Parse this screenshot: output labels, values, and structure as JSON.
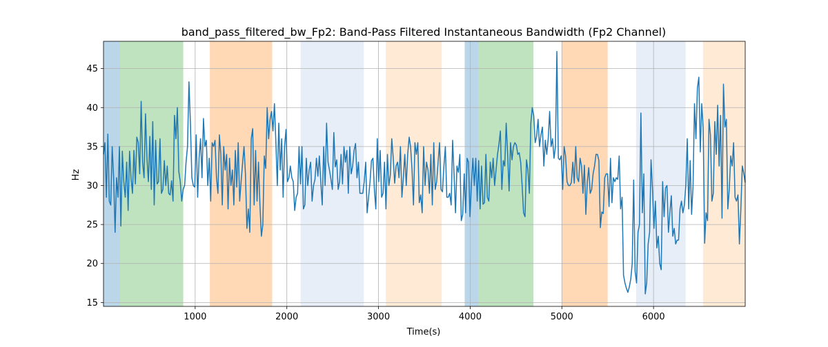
{
  "chart_data": {
    "type": "line",
    "title": "band_pass_filtered_bw_Fp2: Band-Pass Filtered Instantaneous Bandwidth (Fp2 Channel)",
    "xlabel": "Time(s)",
    "ylabel": "Hz",
    "xlim": [
      0,
      7000
    ],
    "ylim": [
      14.5,
      48.5
    ],
    "x_ticks": [
      1000,
      2000,
      3000,
      4000,
      5000,
      6000
    ],
    "y_ticks": [
      15,
      20,
      25,
      30,
      35,
      40,
      45
    ],
    "grid": true,
    "line_color": "#1f77b4",
    "bands": [
      {
        "start": 0,
        "end": 180,
        "color": "#1f77b4",
        "opacity": 0.3
      },
      {
        "start": 180,
        "end": 870,
        "color": "#2ca02c",
        "opacity": 0.3
      },
      {
        "start": 1160,
        "end": 1840,
        "color": "#ff7f0e",
        "opacity": 0.3
      },
      {
        "start": 2150,
        "end": 2840,
        "color": "#aec7e8",
        "opacity": 0.3
      },
      {
        "start": 3080,
        "end": 3690,
        "color": "#ffbb78",
        "opacity": 0.3
      },
      {
        "start": 3940,
        "end": 4090,
        "color": "#1f77b4",
        "opacity": 0.3
      },
      {
        "start": 4090,
        "end": 4690,
        "color": "#2ca02c",
        "opacity": 0.3
      },
      {
        "start": 5000,
        "end": 5500,
        "color": "#ff7f0e",
        "opacity": 0.3
      },
      {
        "start": 5810,
        "end": 6350,
        "color": "#aec7e8",
        "opacity": 0.3
      },
      {
        "start": 6540,
        "end": 7000,
        "color": "#ffbb78",
        "opacity": 0.3
      }
    ],
    "series": [
      {
        "values": [
          34,
          35.5,
          28.5,
          36.6,
          28,
          27.5,
          35,
          31,
          24,
          31,
          28.5,
          35,
          24.8,
          34.4,
          30.5,
          28.5,
          33,
          26.8,
          34.4,
          31,
          29,
          34.5,
          30.2,
          36.2,
          35.5,
          31.5,
          40.8,
          33,
          31,
          39.2,
          33.5,
          30.5,
          36.3,
          29.5,
          38.2,
          27.5,
          35.8,
          30.2,
          30.5,
          36,
          29,
          29.5,
          33.2,
          30,
          32.5,
          29,
          28.8,
          30.6,
          28,
          39,
          36,
          40,
          31.8,
          30.5,
          28,
          29.5,
          30,
          33,
          35,
          43.3,
          38,
          31,
          30,
          29.8,
          36.5,
          28.5,
          33.6,
          36,
          31,
          38.6,
          35,
          35.8,
          30,
          33.5,
          28,
          35.5,
          35,
          35.8,
          31,
          29,
          36.5,
          34,
          27.5,
          35,
          32,
          34,
          27,
          33.5,
          30,
          32,
          27.5,
          34.5,
          29.8,
          35.5,
          28,
          30.5,
          32.8,
          35,
          31.5,
          24.5,
          27,
          24,
          36,
          37.3,
          27.5,
          34.5,
          28,
          33,
          27.5,
          23.5,
          25,
          33.8,
          32.2,
          40,
          36,
          38.5,
          39.5,
          37,
          40.5,
          35.5,
          30,
          38,
          32,
          36,
          28.5,
          35,
          37.2,
          30.5,
          31,
          32.5,
          31,
          30.5,
          26.8,
          28.5,
          29,
          35,
          30.2,
          35,
          27,
          27.5,
          33.5,
          30,
          32,
          33,
          28,
          30,
          30.8,
          33.5,
          31.2,
          33.8,
          30.5,
          27.5,
          35,
          30,
          38,
          33,
          32,
          30.8,
          29.5,
          36.8,
          32.4,
          33.3,
          29.5,
          30.5,
          34,
          30.2,
          35,
          33,
          34.5,
          29,
          35,
          31.5,
          32.5,
          34.5,
          35.4,
          31,
          33,
          29,
          29,
          29,
          30.5,
          33,
          26.5,
          28.5,
          30.5,
          33.2,
          33.5,
          29.5,
          27,
          36,
          30.5,
          34.5,
          28.5,
          29,
          33,
          27,
          34,
          30,
          31.3,
          36,
          33.6,
          30.3,
          32.5,
          33,
          31,
          35,
          28.5,
          31,
          34,
          30,
          34,
          36.2,
          35,
          32,
          27.5,
          35.5,
          34,
          35.5,
          27.8,
          28.8,
          26.5,
          35,
          30,
          33,
          32,
          29,
          34,
          27.5,
          35.5,
          29.5,
          30.5,
          33,
          35.5,
          29.5,
          29.2,
          32.5,
          35,
          28.5,
          28.5,
          29,
          27.5,
          35.8,
          31.5,
          26.5,
          32.5,
          31.7,
          34,
          25.5,
          26.3,
          31.5,
          26.5,
          33.5,
          33,
          26,
          30.2,
          33.5,
          30,
          33.5,
          28,
          33.2,
          27,
          32.5,
          27.6,
          27.8,
          34,
          28.5,
          28,
          33,
          31,
          33.5,
          30,
          32,
          34,
          35.3,
          37,
          29.5,
          33.2,
          32.5,
          38,
          34,
          29.3,
          35.5,
          33.3,
          35,
          35.5,
          35.2,
          34,
          34.2,
          33,
          30,
          26.5,
          26,
          33.3,
          32,
          29,
          38,
          40,
          39,
          35.5,
          36.3,
          38.5,
          35,
          36.5,
          37.5,
          32.5,
          35.8,
          34,
          36,
          39.5,
          35,
          36,
          33.5,
          35,
          47.2,
          33.5,
          33.3,
          33.8,
          29.5,
          35,
          33.8,
          30.5,
          30,
          30,
          30.4,
          33,
          30.3,
          35,
          31,
          30.5,
          33.5,
          32.5,
          29,
          32.6,
          26.3,
          30.5,
          32.3,
          29,
          29.5,
          31.5,
          32.5,
          34,
          34,
          33.2,
          24.6,
          26.6,
          26.4,
          31,
          31.5,
          31.5,
          27.3,
          33.5,
          27.8,
          31,
          30.5,
          31,
          30.8,
          33.8,
          27,
          28.5,
          18.5,
          17.5,
          16.8,
          16.3,
          17,
          18,
          20,
          30.7,
          19,
          17.5,
          24,
          25,
          39.3,
          26.5,
          31.5,
          16.1,
          17.5,
          22.5,
          24,
          33.3,
          29.5,
          24.5,
          28,
          22,
          23.5,
          20,
          19.2,
          30.5,
          26,
          29.7,
          30,
          24,
          26.5,
          28.7,
          23.5,
          24.5,
          22.5,
          23,
          23,
          27,
          28,
          26.5,
          27.5,
          30,
          36,
          27,
          33.2,
          26.3,
          30,
          40.5,
          36,
          42.5,
          43.9,
          34.3,
          40.5,
          37.3,
          22.6,
          26.5,
          25.5,
          38.5,
          36.5,
          28,
          29,
          38.2,
          34,
          40.3,
          32.5,
          39,
          25.8,
          43,
          37.5,
          38.5,
          27,
          29.5,
          33.8,
          32.5,
          35.5,
          28.5,
          28,
          28.8,
          22.5,
          27,
          32.5,
          31.6,
          30.4
        ]
      }
    ]
  }
}
